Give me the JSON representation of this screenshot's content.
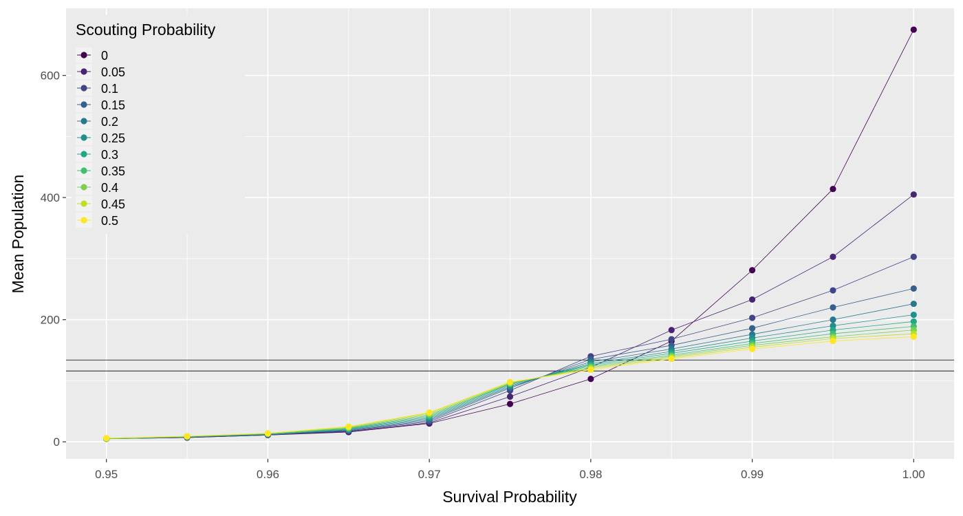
{
  "chart_data": {
    "type": "line",
    "xlabel": "Survival Probability",
    "ylabel": "Mean Population",
    "legend_title": "Scouting Probability",
    "legend_position": "top-left",
    "grid": true,
    "panel_background": "#ebebeb",
    "xlim": [
      0.9475,
      1.0025
    ],
    "ylim": [
      -28,
      710
    ],
    "x_ticks": [
      0.95,
      0.96,
      0.97,
      0.98,
      0.99,
      1.0
    ],
    "x_tick_labels": [
      "0.95",
      "0.96",
      "0.97",
      "0.98",
      "0.99",
      "1.00"
    ],
    "y_ticks": [
      0,
      200,
      400,
      600
    ],
    "y_tick_labels": [
      "0",
      "200",
      "400",
      "600"
    ],
    "hlines": [
      134,
      116
    ],
    "x": [
      0.95,
      0.955,
      0.96,
      0.965,
      0.97,
      0.975,
      0.98,
      0.985,
      0.99,
      0.995,
      1.0
    ],
    "series": [
      {
        "name": "0",
        "color": "#440154",
        "values": [
          5,
          7,
          11,
          16,
          30,
          62,
          103,
          165,
          281,
          414,
          675
        ]
      },
      {
        "name": "0.05",
        "color": "#482475",
        "values": [
          5,
          7,
          11,
          17,
          31,
          74,
          122,
          183,
          233,
          303,
          405
        ]
      },
      {
        "name": "0.1",
        "color": "#414487",
        "values": [
          5,
          8,
          11,
          18,
          33,
          84,
          140,
          168,
          203,
          248,
          303
        ]
      },
      {
        "name": "0.15",
        "color": "#355f8d",
        "values": [
          5,
          8,
          12,
          18,
          35,
          88,
          135,
          158,
          186,
          220,
          251
        ]
      },
      {
        "name": "0.2",
        "color": "#2a788e",
        "values": [
          5,
          8,
          12,
          19,
          37,
          90,
          131,
          152,
          176,
          200,
          226
        ]
      },
      {
        "name": "0.25",
        "color": "#21908d",
        "values": [
          5,
          8,
          12,
          20,
          39,
          92,
          128,
          148,
          170,
          190,
          208
        ]
      },
      {
        "name": "0.3",
        "color": "#22a884",
        "values": [
          5,
          8,
          13,
          21,
          41,
          94,
          126,
          145,
          165,
          183,
          197
        ]
      },
      {
        "name": "0.35",
        "color": "#43bf71",
        "values": [
          5,
          8,
          13,
          22,
          43,
          95,
          124,
          142,
          161,
          177,
          189
        ]
      },
      {
        "name": "0.4",
        "color": "#7ad151",
        "values": [
          5,
          9,
          13,
          23,
          45,
          96,
          122,
          140,
          158,
          172,
          183
        ]
      },
      {
        "name": "0.45",
        "color": "#bddf26",
        "values": [
          6,
          9,
          14,
          24,
          47,
          97,
          120,
          138,
          155,
          169,
          177
        ]
      },
      {
        "name": "0.5",
        "color": "#fde725",
        "values": [
          6,
          9,
          14,
          25,
          48,
          98,
          118,
          136,
          152,
          165,
          172
        ]
      }
    ]
  }
}
